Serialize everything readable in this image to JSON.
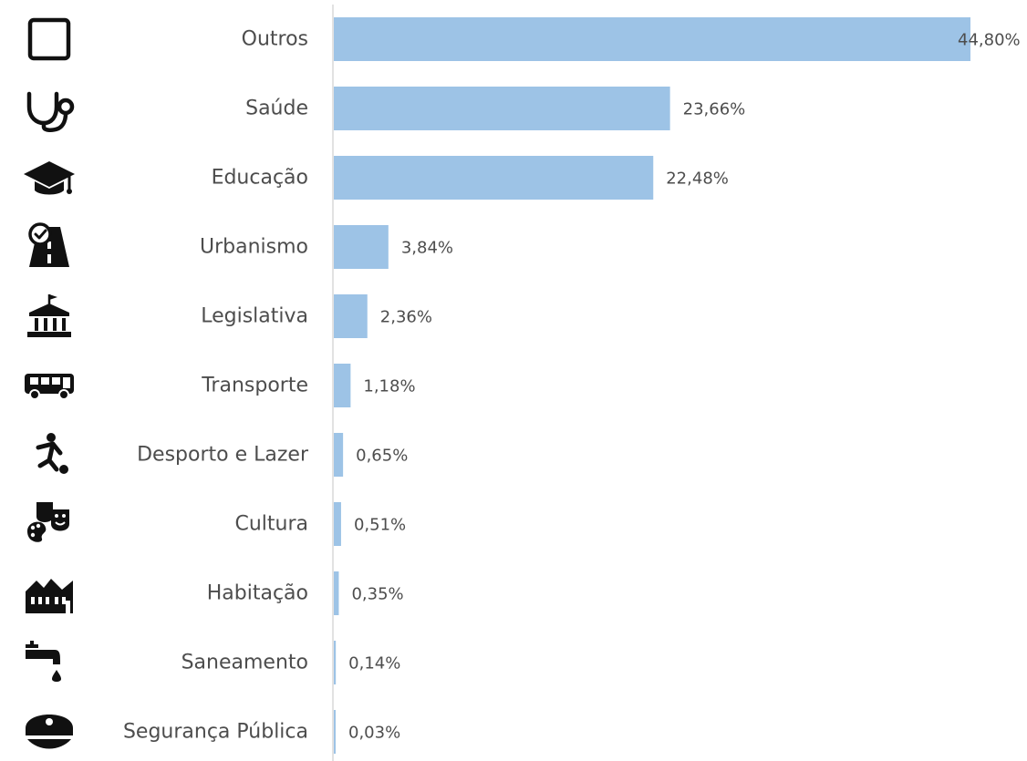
{
  "chart_data": {
    "type": "bar",
    "orientation": "horizontal",
    "categories": [
      "Outros",
      "Saúde",
      "Educação",
      "Urbanismo",
      "Legislativa",
      "Transporte",
      "Desporto e Lazer",
      "Cultura",
      "Habitação",
      "Saneamento",
      "Segurança Pública"
    ],
    "values": [
      44.8,
      23.66,
      22.48,
      3.84,
      2.36,
      1.18,
      0.65,
      0.51,
      0.35,
      0.14,
      0.03
    ],
    "value_labels": [
      "44,80%",
      "23,66%",
      "22,48%",
      "3,84%",
      "2,36%",
      "1,18%",
      "0,65%",
      "0,51%",
      "0,35%",
      "0,14%",
      "0,03%"
    ],
    "icons": [
      "square-outline-icon",
      "stethoscope-icon",
      "graduation-cap-icon",
      "road-check-icon",
      "government-building-icon",
      "bus-icon",
      "soccer-player-icon",
      "theater-masks-palette-icon",
      "houses-icon",
      "faucet-drop-icon",
      "police-cap-icon"
    ],
    "xlim": [
      0,
      44.8
    ],
    "grid": false,
    "legend": "none",
    "bar_color": "#9dc3e6",
    "label_color": "#4d4d4d"
  }
}
